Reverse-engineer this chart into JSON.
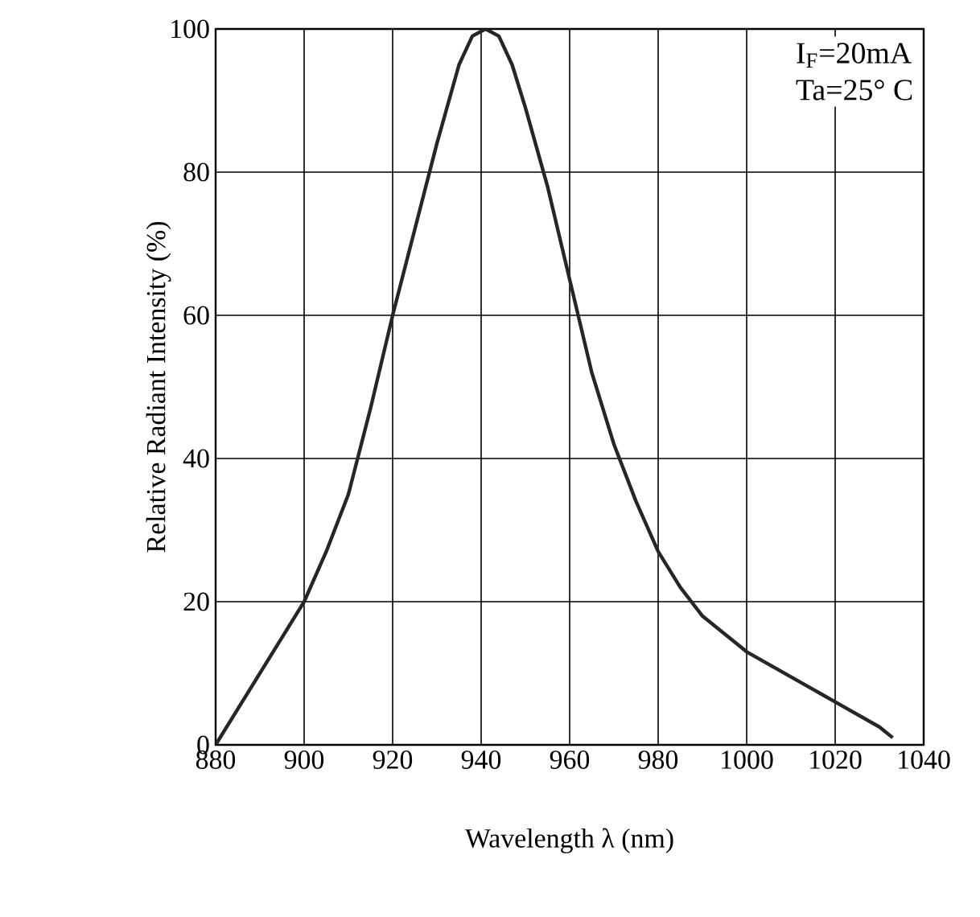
{
  "chart_data": {
    "type": "line",
    "xlabel": "Wavelength λ (nm)",
    "ylabel": "Relative Radiant Intensity (%)",
    "annotations": [
      "I$_{F}$=20mA",
      "Ta=25°  C"
    ],
    "x": [
      880,
      885,
      890,
      895,
      900,
      905,
      910,
      915,
      920,
      925,
      930,
      935,
      938,
      941,
      944,
      947,
      950,
      955,
      960,
      965,
      970,
      975,
      980,
      985,
      990,
      1000,
      1010,
      1020,
      1030,
      1033
    ],
    "series": [
      {
        "color": "#262626",
        "values": [
          0,
          5,
          10,
          15,
          20,
          27,
          35,
          47,
          60,
          72,
          84,
          95,
          99,
          100,
          99,
          95,
          89,
          78,
          65,
          52,
          42,
          34,
          27,
          22,
          18,
          13,
          9.5,
          6,
          2.5,
          1
        ]
      }
    ],
    "xlim": [
      880,
      1040
    ],
    "ylim": [
      0,
      100
    ],
    "xticks": [
      880,
      900,
      920,
      940,
      960,
      980,
      1000,
      1020,
      1040
    ],
    "yticks": [
      0,
      20,
      40,
      60,
      80,
      100
    ],
    "grid": true,
    "line_style": "solid",
    "marker": "none"
  }
}
